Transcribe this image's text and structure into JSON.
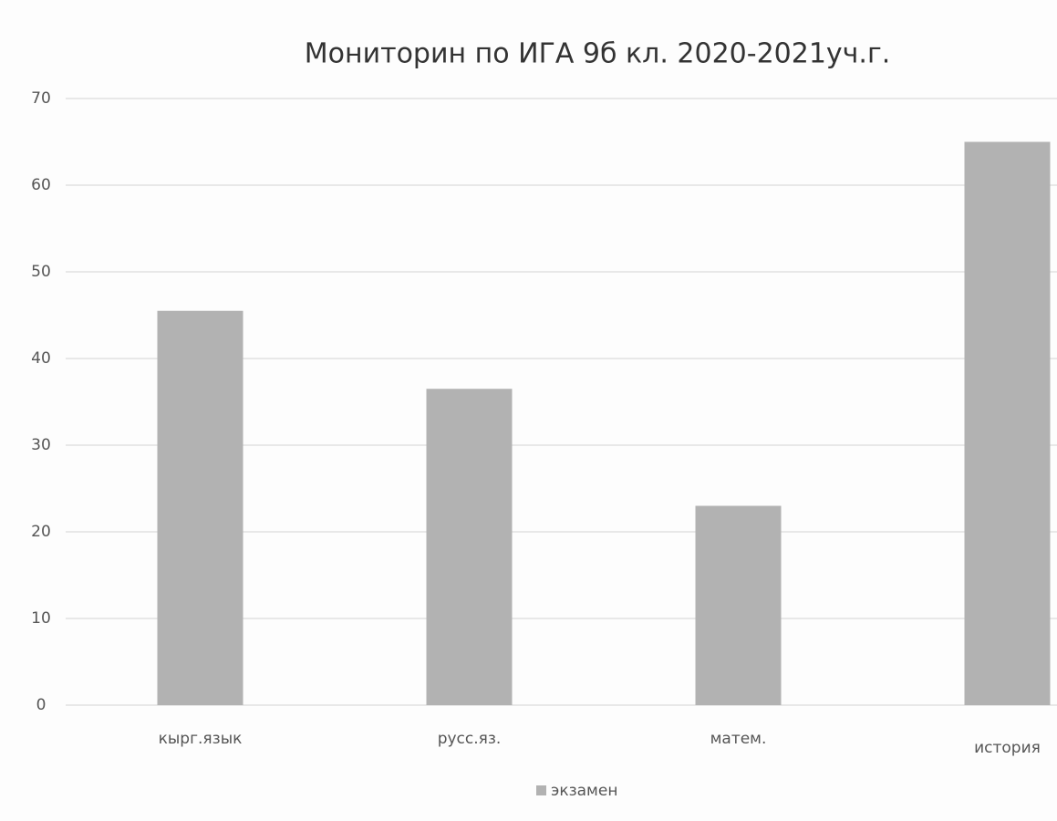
{
  "chart_data": {
    "type": "bar",
    "title": "Мониторин по ИГА 9б кл. 2020-2021уч.г.",
    "categories": [
      "кырг.язык",
      "русс.яз.",
      "матем.",
      "история"
    ],
    "series": [
      {
        "name": "экзамен",
        "color": "#b2b2b2",
        "values": [
          45.5,
          36.5,
          23,
          65
        ]
      }
    ],
    "ylim": [
      0,
      70
    ],
    "yticks": [
      0,
      10,
      20,
      30,
      40,
      50,
      60,
      70
    ],
    "grid": true,
    "legend": "bottom"
  }
}
